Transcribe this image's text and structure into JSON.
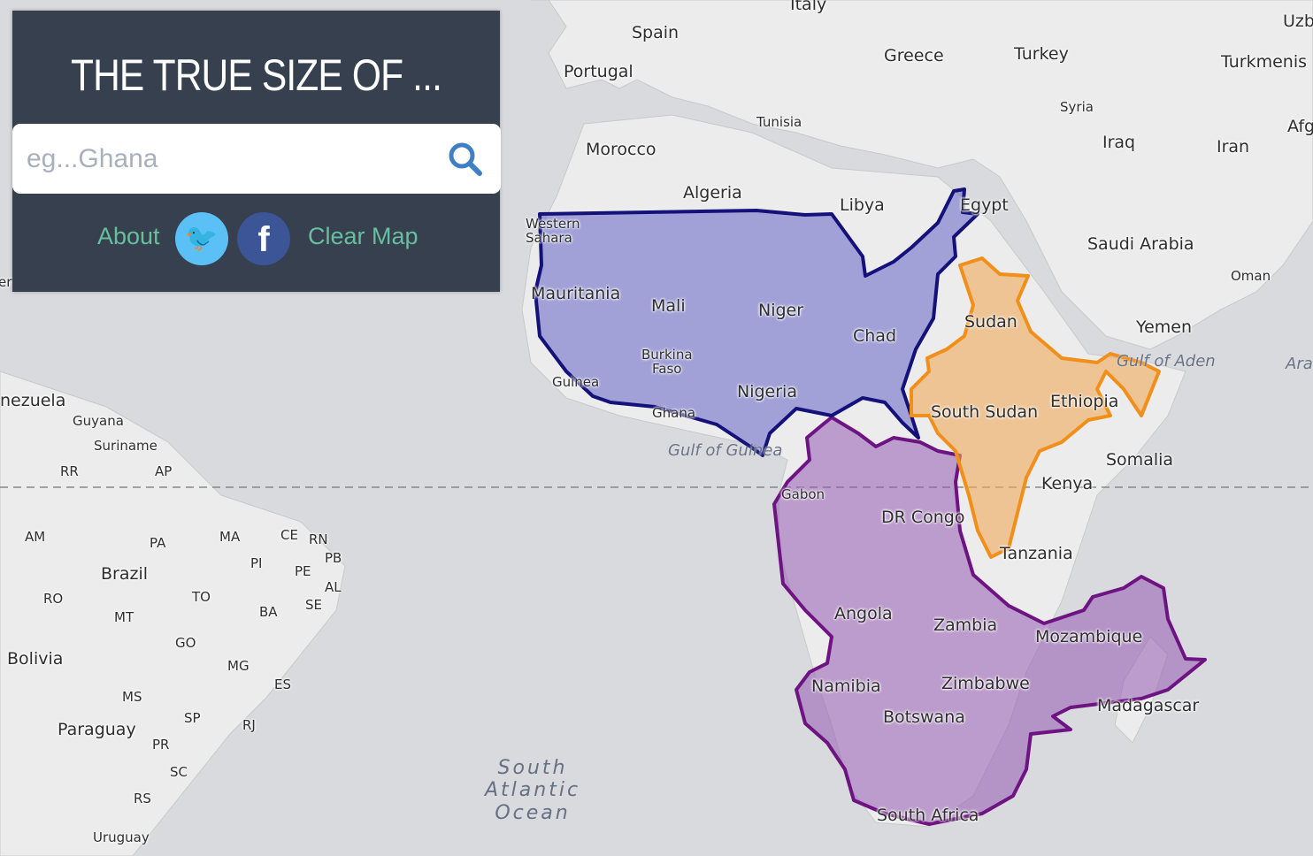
{
  "app": {
    "title": "THE TRUE SIZE OF ...",
    "search_placeholder": "eg...Ghana",
    "about": "About",
    "clear_map": "Clear Map",
    "twitter_glyph": "🐦",
    "facebook_glyph": "f",
    "search_icon": "magnifier-icon"
  },
  "colors": {
    "sea": "#d9dadd",
    "land": "#ececec",
    "panel": "#36404f",
    "link": "#67bf9e",
    "usa_overlay": "#1b1a80",
    "india_overlay": "#f0921e",
    "purple_overlay": "#7a1a8a",
    "twitter": "#5bc0f5",
    "facebook": "#3b5597"
  },
  "labels": [
    "Italy",
    "Spain",
    "Portugal",
    "Greece",
    "Turkey",
    "Uzb",
    "Turkmenis",
    "Syria",
    "Tunisia",
    "Iraq",
    "Iran",
    "Afg",
    "Morocco",
    "Algeria",
    "Libya",
    "Egypt",
    "Saudi Arabia",
    "Oman",
    "Western\nSahara",
    "Mauritania",
    "Mali",
    "Niger",
    "Chad",
    "Sudan",
    "Yemen",
    "Gulf of Aden",
    "Ara",
    "Burkina\nFaso",
    "Guinea",
    "Nigeria",
    "Ghana",
    "South Sudan",
    "Ethiopia",
    "Gulf of Guinea",
    "Somalia",
    "Kenya",
    "Gabon",
    "DR Congo",
    "Tanzania",
    "Angola",
    "Zambia",
    "Mozambique",
    "Namibia",
    "Zimbabwe",
    "Botswana",
    "Madagascar",
    "South Africa",
    "South\nAtlantic\nOcean",
    "nezuela",
    "Guyana",
    "Suriname",
    "RR",
    "AP",
    "AM",
    "PA",
    "MA",
    "CE",
    "RN",
    "PB",
    "PI",
    "PE",
    "AL",
    "Brazil",
    "RO",
    "TO",
    "SE",
    "MT",
    "BA",
    "GO",
    "Bolivia",
    "MG",
    "ES",
    "MS",
    "SP",
    "RJ",
    "Paraguay",
    "PR",
    "SC",
    "RS",
    "Uruguay",
    "ert"
  ]
}
